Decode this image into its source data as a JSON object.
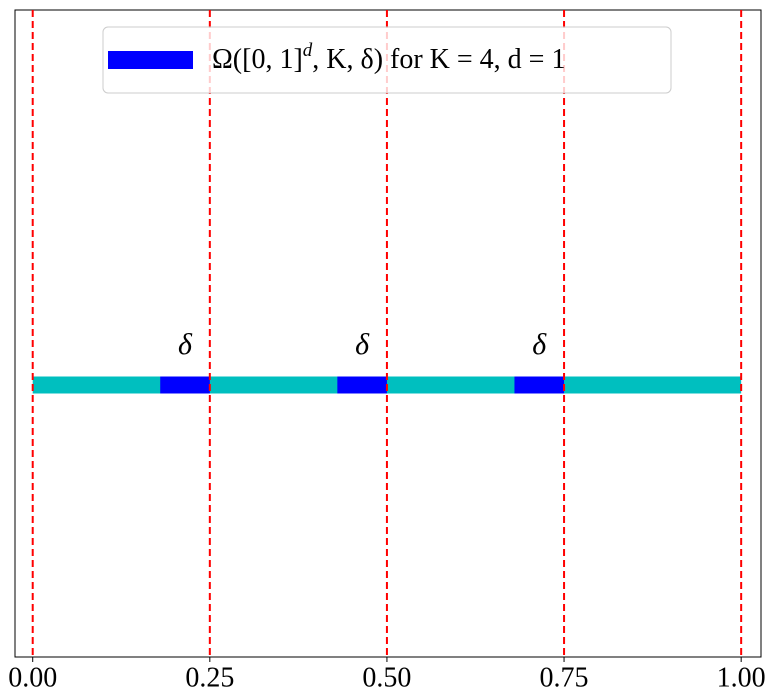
{
  "chart_data": {
    "type": "segments",
    "xlim": [
      -0.025,
      1.028
    ],
    "xticks": [
      {
        "value": 0,
        "label": "0.00"
      },
      {
        "value": 0.25,
        "label": "0.25"
      },
      {
        "value": 0.5,
        "label": "0.50"
      },
      {
        "value": 0.75,
        "label": "0.75"
      },
      {
        "value": 1,
        "label": "1.00"
      }
    ],
    "vlines": [
      0,
      0.25,
      0.5,
      0.75,
      1
    ],
    "vline_color": "#ff0000",
    "base": {
      "color": "#00bfbf",
      "segment": [
        0,
        1
      ]
    },
    "series": [
      {
        "name": [
          "Ω([0, 1]",
          "d",
          ", K, δ) for K = 4, d = 1"
        ],
        "name_superscript": [
          false,
          true,
          false
        ],
        "color": "#0000ff",
        "segments": [
          [
            0.18,
            0.25
          ],
          [
            0.43,
            0.5
          ],
          [
            0.68,
            0.75
          ]
        ]
      }
    ],
    "annotations": [
      {
        "text": "δ",
        "x": 0.215
      },
      {
        "text": "δ",
        "x": 0.465
      },
      {
        "text": "δ",
        "x": 0.715
      }
    ]
  }
}
